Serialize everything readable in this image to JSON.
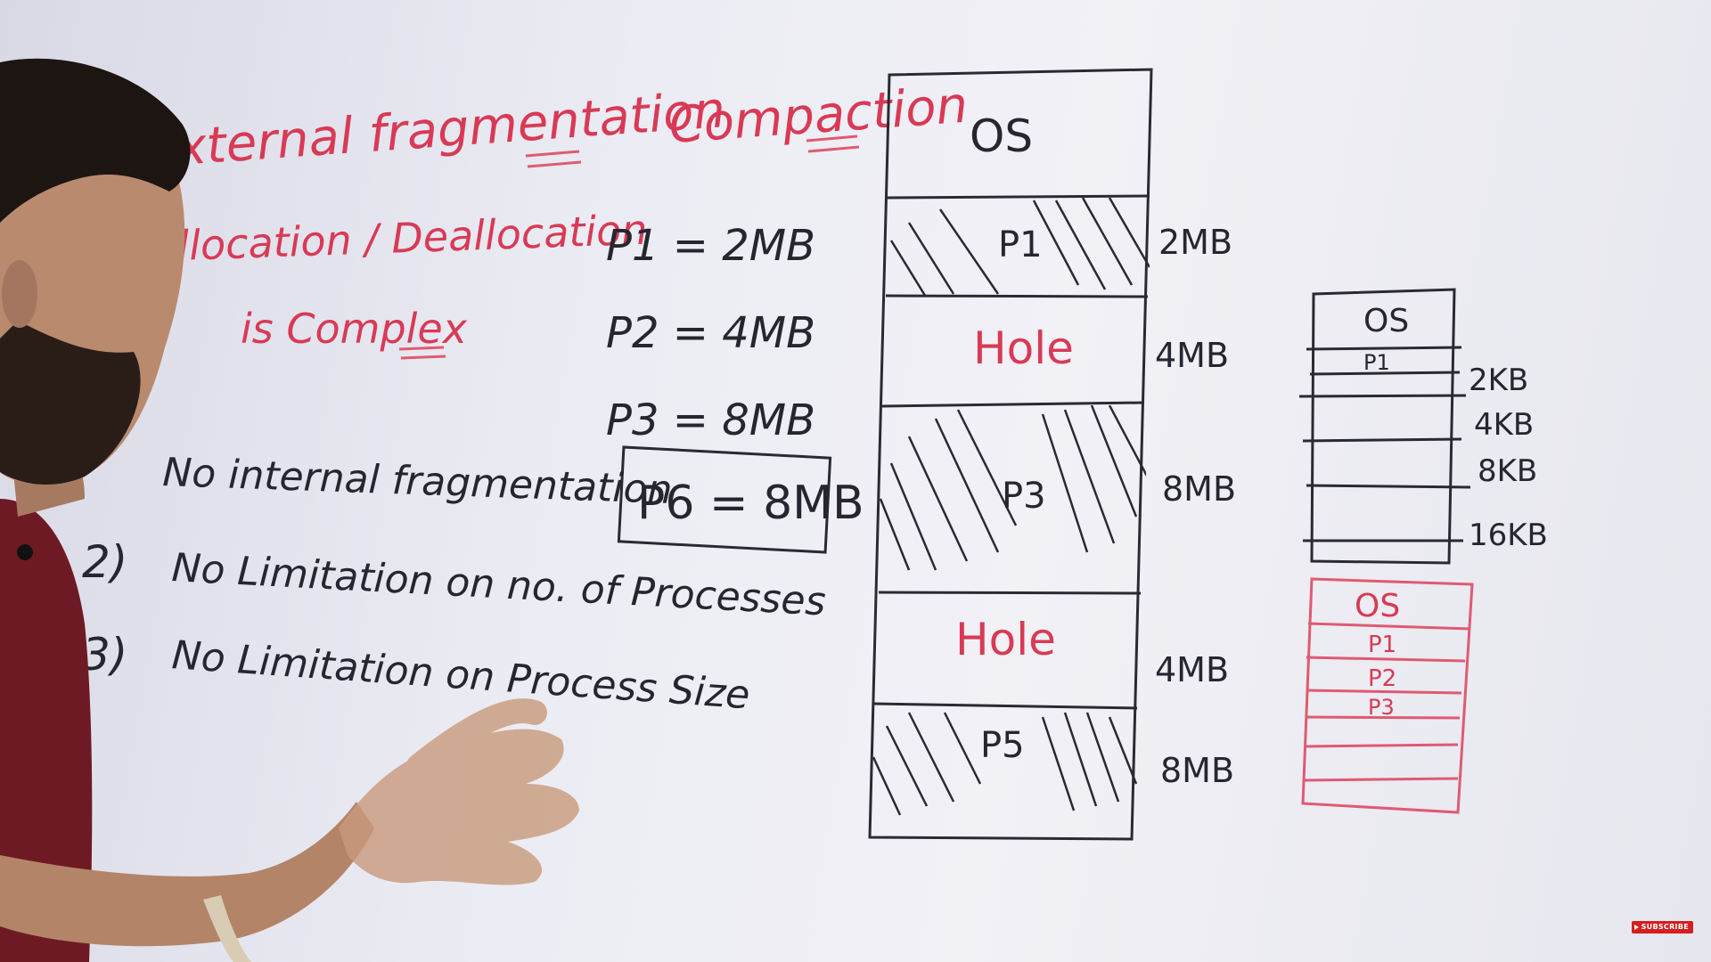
{
  "heading": {
    "topic": "xternal fragmentation",
    "remedy": "Compaction",
    "drawback_line1": "llocation / Deallocation",
    "drawback_line2": "is Complex"
  },
  "processes": {
    "p1": "P1 = 2MB",
    "p2": "P2 = 4MB",
    "p3": "P3 = 8MB",
    "p6_boxed": "P6 = 8MB"
  },
  "advantages": {
    "item1": "No internal fragmentation",
    "item2_num": "2)",
    "item2": "No Limitation on no. of Processes",
    "item3_num": "3)",
    "item3": "No Limitation on Process Size"
  },
  "memory_main": {
    "blocks": [
      {
        "label": "OS",
        "size": ""
      },
      {
        "label": "P1",
        "size": "2MB"
      },
      {
        "label": "Hole",
        "size": "4MB"
      },
      {
        "label": "P3",
        "size": "8MB"
      },
      {
        "label": "Hole",
        "size": "4MB"
      },
      {
        "label": "P5",
        "size": "8MB"
      }
    ]
  },
  "memory_small": {
    "os_label": "OS",
    "p1_label": "P1",
    "sizes": [
      "2KB",
      "4KB",
      "8KB",
      "16KB"
    ]
  },
  "memory_red": {
    "os_label": "OS",
    "p1_label": "P1",
    "p2_label": "P2",
    "p3_label": "P3"
  },
  "badge": {
    "label": "SUBSCRIBE"
  },
  "colors": {
    "red_marker": "#d83a55",
    "black_marker": "#262630",
    "shirt": "#6e1a24",
    "skin": "#b98a6e",
    "hair": "#1c1512"
  }
}
